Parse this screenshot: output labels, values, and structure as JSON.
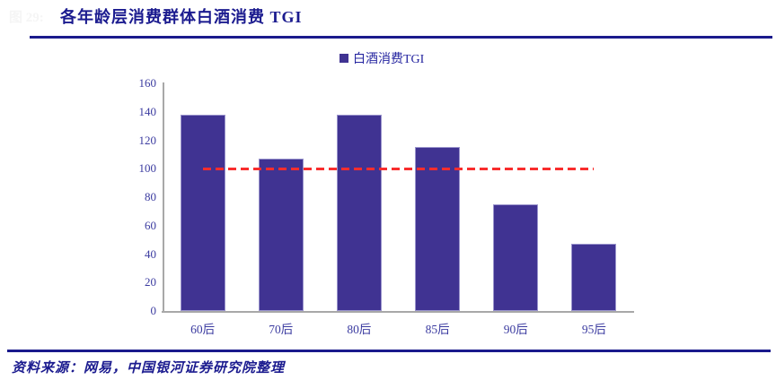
{
  "header": {
    "figure_label": "图 29:",
    "title": "各年龄层消费群体白酒消费 TGI"
  },
  "legend": {
    "label": "白酒消费TGI"
  },
  "chart_data": {
    "type": "bar",
    "title": "各年龄层消费群体白酒消费 TGI",
    "series_name": "白酒消费TGI",
    "categories": [
      "60后",
      "70后",
      "80后",
      "85后",
      "90后",
      "95后"
    ],
    "values": [
      138,
      107,
      138,
      115,
      75,
      47
    ],
    "xlabel": "",
    "ylabel": "",
    "ylim": [
      0,
      160
    ],
    "yticks": [
      0,
      20,
      40,
      60,
      80,
      100,
      120,
      140,
      160
    ],
    "grid": false,
    "legend_position": "top-center",
    "reference_line": {
      "value": 100,
      "style": "dashed"
    }
  },
  "footer": {
    "source": "资料来源：网易，中国银河证券研究院整理"
  },
  "colors": {
    "bar": "#403392",
    "title": "#1b1b8f",
    "legend_text": "#2525a0",
    "axis_label": "#3b3ba0",
    "axis_line": "#a8a8a8",
    "divider": "#1a1a8c",
    "reference_line": "#f82d2d",
    "source_text": "#1b1b8f",
    "figure_label": "#f5f5f5"
  }
}
